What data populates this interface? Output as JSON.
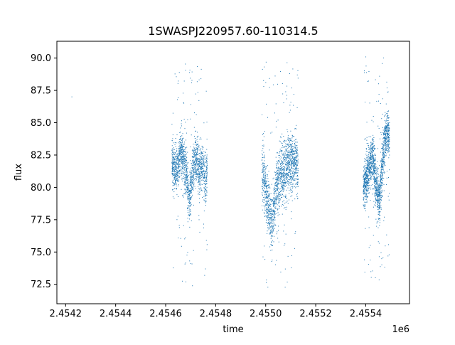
{
  "chart_data": {
    "type": "scatter",
    "title": "1SWASPJ220957.60-110314.5",
    "xlabel": "time",
    "ylabel": "flux",
    "x_offset_label": "1e6",
    "xlim": [
      2454165,
      2455575
    ],
    "ylim": [
      71.0,
      91.3
    ],
    "x_ticks": [
      2454200,
      2454400,
      2454600,
      2454800,
      2455000,
      2455200,
      2455400
    ],
    "x_tick_labels": [
      "2.4542",
      "2.4544",
      "2.4546",
      "2.4548",
      "2.4550",
      "2.4552",
      "2.4554"
    ],
    "y_ticks": [
      72.5,
      75.0,
      77.5,
      80.0,
      82.5,
      85.0,
      87.5,
      90.0
    ],
    "y_tick_labels": [
      "72.5",
      "75.0",
      "77.5",
      "80.0",
      "82.5",
      "85.0",
      "87.5",
      "90.0"
    ],
    "grid": false,
    "marker_color": "#1f77b4",
    "observing_seasons": [
      {
        "anchors": [
          [
            2454625,
            82.0
          ],
          [
            2454645,
            81.0
          ],
          [
            2454660,
            83.0
          ],
          [
            2454680,
            81.5
          ],
          [
            2454695,
            79.0
          ],
          [
            2454710,
            81.5
          ],
          [
            2454725,
            82.3
          ],
          [
            2454735,
            81.0
          ],
          [
            2454750,
            82.0
          ],
          [
            2454760,
            80.0
          ],
          [
            2454766,
            82.0
          ]
        ],
        "scatter_sd": 0.9,
        "outlier_y_range": [
          72.0,
          89.7
        ]
      },
      {
        "anchors": [
          [
            2454985,
            80.8
          ],
          [
            2454995,
            80.5
          ],
          [
            2455005,
            79.0
          ],
          [
            2455015,
            78.0
          ],
          [
            2455025,
            77.3
          ],
          [
            2455040,
            79.8
          ],
          [
            2455060,
            81.0
          ],
          [
            2455080,
            81.5
          ],
          [
            2455100,
            82.0
          ],
          [
            2455115,
            82.0
          ],
          [
            2455130,
            81.5
          ]
        ],
        "scatter_sd": 1.1,
        "outlier_y_range": [
          72.0,
          90.0
        ]
      },
      {
        "anchors": [
          [
            2455390,
            80.0
          ],
          [
            2455410,
            81.0
          ],
          [
            2455425,
            82.5
          ],
          [
            2455440,
            80.5
          ],
          [
            2455455,
            79.0
          ],
          [
            2455470,
            82.5
          ],
          [
            2455485,
            84.5
          ],
          [
            2455495,
            83.5
          ]
        ],
        "scatter_sd": 0.9,
        "outlier_y_range": [
          72.4,
          90.2
        ]
      }
    ],
    "isolated_points": [
      [
        2454225,
        87.0
      ]
    ]
  }
}
